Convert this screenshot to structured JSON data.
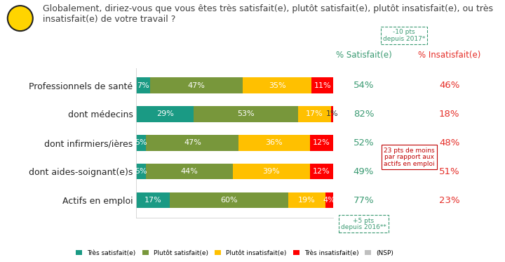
{
  "chart_data": {
    "type": "bar",
    "orientation": "horizontal",
    "stacked": true,
    "data_labels": true,
    "title": "Globalement, diriez-vous que vous êtes très satisfait(e), plutôt satisfait(e), plutôt insatisfait(e), ou très insatisfait(e) de votre travail ?",
    "categories": [
      "Professionnels de santé",
      "dont médecins",
      "dont infirmiers/ières",
      "dont aides-soignant(e)s",
      "Actifs en emploi"
    ],
    "xlim": [
      0,
      100
    ],
    "tick_labels": "y",
    "legend": "lower center",
    "series": [
      {
        "name": "Très satisfait(e)",
        "color": "#1a9a84",
        "values": [
          7,
          29,
          5,
          5,
          17
        ],
        "value_labels": [
          "7%",
          "29%",
          "5%",
          "5%",
          "17%"
        ]
      },
      {
        "name": "Plutôt satisfait(e)",
        "color": "#78973b",
        "values": [
          47,
          53,
          47,
          44,
          60
        ],
        "value_labels": [
          "47%",
          "53%",
          "47%",
          "44%",
          "60%"
        ]
      },
      {
        "name": "Plutôt insatisfait(e)",
        "color": "#ffc000",
        "values": [
          35,
          17,
          36,
          39,
          19
        ],
        "value_labels": [
          "35%",
          "17%",
          "36%",
          "39%",
          "19%"
        ]
      },
      {
        "name": "Très insatisfait(e)",
        "color": "#ff0000",
        "values": [
          11,
          1,
          12,
          12,
          4
        ],
        "value_labels": [
          "11%",
          "1%",
          "12%",
          "12%",
          "4%"
        ]
      },
      {
        "name": "(NSP)",
        "color": "#bfbfbf",
        "values": [
          0,
          0,
          0,
          0,
          0
        ],
        "value_labels": [
          null,
          null,
          null,
          null,
          null
        ]
      }
    ],
    "columns": [
      {
        "header": "% Satisfait(e)",
        "color": "#3a9a72",
        "labels": [
          "54%",
          "82%",
          "52%",
          "49%",
          "77%"
        ]
      },
      {
        "header": "% Insatisfait(e)",
        "color": "#e52d27",
        "labels": [
          "46%",
          "18%",
          "48%",
          "51%",
          "23%"
        ]
      }
    ],
    "annotations": [
      {
        "text": "-10 pts",
        "note": "depuis 2017*",
        "color": "#3a9a72"
      },
      {
        "text": "23 pts de moins",
        "note": "par rapport aux\nactifs en emploi",
        "color": "#c00000"
      },
      {
        "text": "+5 pts",
        "note": "depuis 2016**",
        "color": "#3a9a72"
      }
    ]
  }
}
